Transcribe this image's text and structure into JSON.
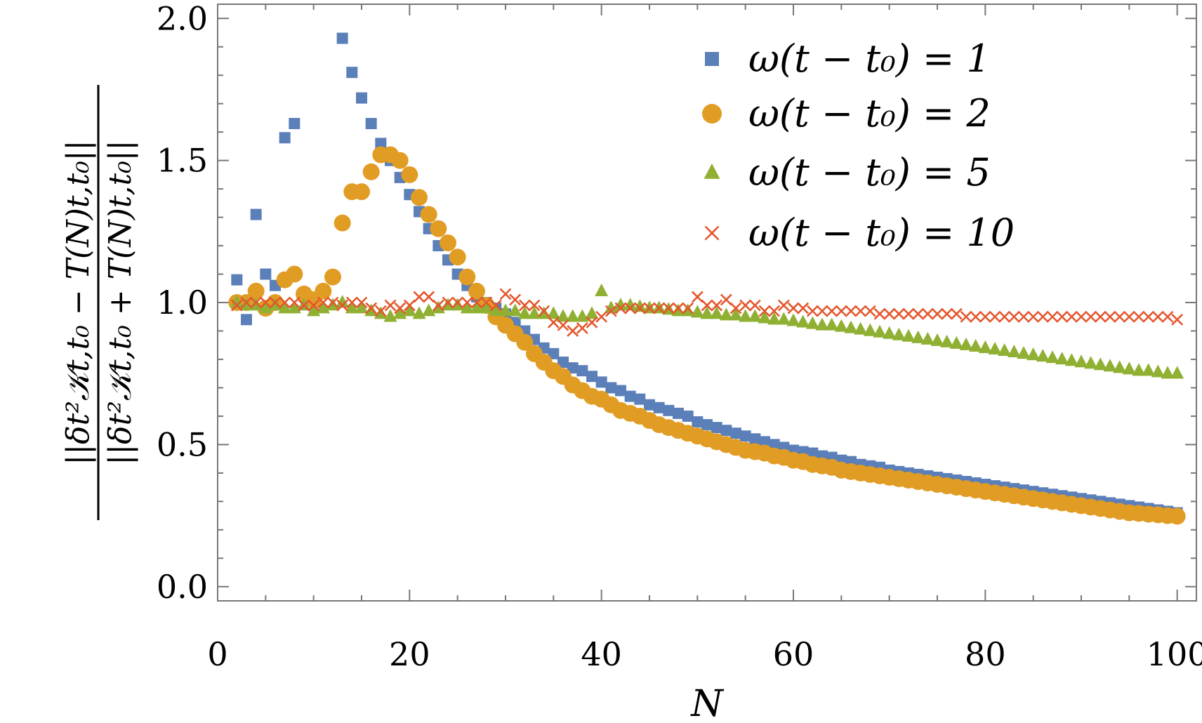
{
  "chart_data": {
    "type": "scatter",
    "title": "",
    "xlabel": "N",
    "ylabel_numerator": "||δt²𝒦t,t₀ − T(N)t,t₀||",
    "ylabel_denominator": "||δt²𝒦t,t₀ + T(N)t,t₀||",
    "xlim": [
      0,
      102
    ],
    "ylim": [
      -0.05,
      2.05
    ],
    "xticks": [
      "0",
      "20",
      "40",
      "60",
      "80",
      "100"
    ],
    "yticks": [
      "0.0",
      "0.5",
      "1.0",
      "1.5",
      "2.0"
    ],
    "grid": false,
    "legend_position": "top-right",
    "series": [
      {
        "name": "ω(t − t₀) = 1",
        "marker": "square",
        "color": "#5b7fb8",
        "x": [
          2,
          3,
          4,
          5,
          6,
          7,
          8,
          13,
          14,
          15,
          16,
          17,
          18,
          19,
          20,
          21,
          22,
          23,
          24,
          25,
          26,
          27,
          28,
          29,
          30,
          31,
          32,
          33,
          34,
          35,
          36,
          37,
          38,
          39,
          40,
          41,
          42,
          43,
          44,
          45,
          46,
          47,
          48,
          49,
          50,
          51,
          52,
          53,
          54,
          55,
          56,
          57,
          58,
          59,
          60,
          61,
          62,
          63,
          64,
          65,
          66,
          67,
          68,
          69,
          70,
          71,
          72,
          73,
          74,
          75,
          76,
          77,
          78,
          79,
          80,
          81,
          82,
          83,
          84,
          85,
          86,
          87,
          88,
          89,
          90,
          91,
          92,
          93,
          94,
          95,
          96,
          97,
          98,
          99,
          100
        ],
        "y": [
          1.08,
          0.94,
          1.31,
          1.1,
          1.06,
          1.58,
          1.63,
          1.93,
          1.81,
          1.72,
          1.63,
          1.56,
          1.5,
          1.44,
          1.38,
          1.32,
          1.26,
          1.2,
          1.15,
          1.1,
          1.06,
          1.02,
          1.0,
          0.98,
          0.96,
          0.93,
          0.9,
          0.87,
          0.84,
          0.82,
          0.79,
          0.77,
          0.76,
          0.74,
          0.72,
          0.7,
          0.69,
          0.67,
          0.66,
          0.64,
          0.63,
          0.62,
          0.61,
          0.6,
          0.58,
          0.57,
          0.56,
          0.55,
          0.54,
          0.53,
          0.52,
          0.51,
          0.5,
          0.49,
          0.48,
          0.475,
          0.47,
          0.46,
          0.455,
          0.445,
          0.44,
          0.43,
          0.425,
          0.42,
          0.41,
          0.405,
          0.4,
          0.395,
          0.39,
          0.385,
          0.38,
          0.375,
          0.37,
          0.365,
          0.36,
          0.355,
          0.35,
          0.345,
          0.34,
          0.335,
          0.33,
          0.325,
          0.32,
          0.315,
          0.31,
          0.305,
          0.3,
          0.295,
          0.29,
          0.285,
          0.28,
          0.275,
          0.27,
          0.265,
          0.26
        ]
      },
      {
        "name": "ω(t − t₀) = 2",
        "marker": "circle",
        "color": "#e19c24",
        "x": [
          2,
          3,
          4,
          5,
          6,
          7,
          8,
          9,
          10,
          11,
          12,
          13,
          14,
          15,
          16,
          17,
          18,
          19,
          20,
          21,
          22,
          23,
          24,
          25,
          26,
          27,
          28,
          29,
          30,
          31,
          32,
          33,
          34,
          35,
          36,
          37,
          38,
          39,
          40,
          41,
          42,
          43,
          44,
          45,
          46,
          47,
          48,
          49,
          50,
          51,
          52,
          53,
          54,
          55,
          56,
          57,
          58,
          59,
          60,
          61,
          62,
          63,
          64,
          65,
          66,
          67,
          68,
          69,
          70,
          71,
          72,
          73,
          74,
          75,
          76,
          77,
          78,
          79,
          80,
          81,
          82,
          83,
          84,
          85,
          86,
          87,
          88,
          89,
          90,
          91,
          92,
          93,
          94,
          95,
          96,
          97,
          98,
          99,
          100
        ],
        "y": [
          1.0,
          1.0,
          1.04,
          0.98,
          1.0,
          1.08,
          1.1,
          1.03,
          1.01,
          1.04,
          1.09,
          1.28,
          1.39,
          1.39,
          1.46,
          1.52,
          1.52,
          1.5,
          1.45,
          1.37,
          1.31,
          1.26,
          1.21,
          1.16,
          1.09,
          1.04,
          0.99,
          0.95,
          0.92,
          0.89,
          0.86,
          0.82,
          0.79,
          0.76,
          0.74,
          0.71,
          0.69,
          0.67,
          0.66,
          0.64,
          0.62,
          0.61,
          0.6,
          0.585,
          0.57,
          0.56,
          0.55,
          0.54,
          0.53,
          0.52,
          0.51,
          0.5,
          0.49,
          0.48,
          0.475,
          0.47,
          0.46,
          0.455,
          0.445,
          0.44,
          0.43,
          0.425,
          0.42,
          0.41,
          0.405,
          0.4,
          0.395,
          0.39,
          0.385,
          0.38,
          0.375,
          0.37,
          0.365,
          0.36,
          0.355,
          0.35,
          0.345,
          0.34,
          0.335,
          0.33,
          0.325,
          0.32,
          0.315,
          0.31,
          0.305,
          0.3,
          0.295,
          0.29,
          0.285,
          0.28,
          0.275,
          0.27,
          0.265,
          0.26,
          0.258,
          0.255,
          0.253,
          0.25,
          0.248
        ]
      },
      {
        "name": "ω(t − t₀) = 5",
        "marker": "triangle",
        "color": "#8fb032",
        "x": [
          2,
          3,
          4,
          5,
          6,
          7,
          8,
          9,
          10,
          11,
          12,
          13,
          14,
          15,
          16,
          17,
          18,
          19,
          20,
          21,
          22,
          23,
          24,
          25,
          26,
          27,
          28,
          29,
          30,
          31,
          32,
          33,
          34,
          35,
          36,
          37,
          38,
          39,
          40,
          41,
          42,
          43,
          44,
          45,
          46,
          47,
          48,
          49,
          50,
          51,
          52,
          53,
          54,
          55,
          56,
          57,
          58,
          59,
          60,
          61,
          62,
          63,
          64,
          65,
          66,
          67,
          68,
          69,
          70,
          71,
          72,
          73,
          74,
          75,
          76,
          77,
          78,
          79,
          80,
          81,
          82,
          83,
          84,
          85,
          86,
          87,
          88,
          89,
          90,
          91,
          92,
          93,
          94,
          95,
          96,
          97,
          98,
          99,
          100
        ],
        "y": [
          1.0,
          0.99,
          0.99,
          0.98,
          0.99,
          0.98,
          0.98,
          0.99,
          0.97,
          0.98,
          0.99,
          1.0,
          0.98,
          0.98,
          0.97,
          0.96,
          0.95,
          0.96,
          0.97,
          0.96,
          0.97,
          0.98,
          0.99,
          0.99,
          0.98,
          0.98,
          0.98,
          0.97,
          0.97,
          0.97,
          0.96,
          0.96,
          0.96,
          0.96,
          0.95,
          0.95,
          0.95,
          0.96,
          1.04,
          0.98,
          0.99,
          0.99,
          0.985,
          0.98,
          0.98,
          0.975,
          0.97,
          0.97,
          0.965,
          0.96,
          0.96,
          0.955,
          0.955,
          0.95,
          0.95,
          0.945,
          0.94,
          0.94,
          0.935,
          0.93,
          0.925,
          0.92,
          0.92,
          0.915,
          0.91,
          0.905,
          0.9,
          0.895,
          0.89,
          0.885,
          0.88,
          0.875,
          0.87,
          0.865,
          0.86,
          0.855,
          0.85,
          0.845,
          0.84,
          0.835,
          0.83,
          0.825,
          0.82,
          0.815,
          0.81,
          0.805,
          0.8,
          0.795,
          0.79,
          0.785,
          0.78,
          0.775,
          0.77,
          0.765,
          0.76,
          0.76,
          0.755,
          0.75,
          0.75
        ]
      },
      {
        "name": "ω(t − t₀) = 10",
        "marker": "x",
        "color": "#e4572e",
        "x": [
          2,
          3,
          4,
          5,
          6,
          7,
          8,
          9,
          10,
          11,
          12,
          13,
          14,
          15,
          16,
          17,
          18,
          19,
          20,
          21,
          22,
          23,
          24,
          25,
          26,
          27,
          28,
          29,
          30,
          31,
          32,
          33,
          34,
          35,
          36,
          37,
          38,
          39,
          40,
          41,
          42,
          43,
          44,
          45,
          46,
          47,
          48,
          49,
          50,
          51,
          52,
          53,
          54,
          55,
          56,
          57,
          58,
          59,
          60,
          61,
          62,
          63,
          64,
          65,
          66,
          67,
          68,
          69,
          70,
          71,
          72,
          73,
          74,
          75,
          76,
          77,
          78,
          79,
          80,
          81,
          82,
          83,
          84,
          85,
          86,
          87,
          88,
          89,
          90,
          91,
          92,
          93,
          94,
          95,
          96,
          97,
          98,
          99,
          100
        ],
        "y": [
          0.99,
          1.0,
          1.0,
          1.0,
          1.0,
          1.0,
          1.0,
          0.99,
          0.99,
          1.0,
          1.0,
          0.99,
          1.0,
          1.0,
          0.98,
          0.97,
          0.99,
          0.98,
          0.99,
          1.02,
          1.02,
          0.99,
          1.0,
          1.0,
          1.0,
          1.0,
          1.0,
          0.99,
          1.03,
          1.01,
          0.99,
          0.99,
          0.97,
          0.93,
          0.92,
          0.9,
          0.91,
          0.93,
          0.95,
          0.97,
          0.98,
          0.98,
          0.98,
          0.98,
          0.98,
          0.98,
          0.98,
          0.98,
          1.02,
          0.99,
          0.99,
          1.01,
          0.98,
          0.99,
          0.99,
          0.97,
          0.97,
          0.99,
          0.98,
          0.98,
          0.97,
          0.97,
          0.97,
          0.97,
          0.97,
          0.97,
          0.97,
          0.96,
          0.96,
          0.96,
          0.96,
          0.96,
          0.96,
          0.96,
          0.96,
          0.96,
          0.95,
          0.95,
          0.95,
          0.95,
          0.95,
          0.95,
          0.95,
          0.95,
          0.95,
          0.95,
          0.95,
          0.95,
          0.95,
          0.95,
          0.95,
          0.95,
          0.95,
          0.95,
          0.95,
          0.95,
          0.95,
          0.95,
          0.94
        ]
      }
    ]
  }
}
